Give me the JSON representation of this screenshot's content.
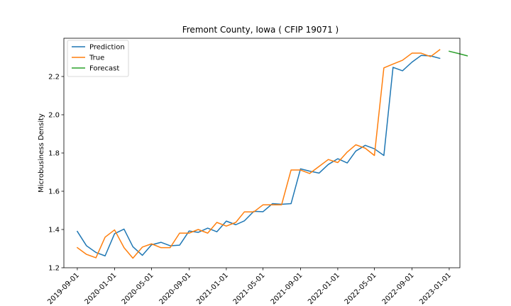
{
  "chart_data": {
    "type": "line",
    "title": "Fremont County, Iowa ( CFIP 19071 )",
    "xlabel": "",
    "ylabel": "Microbusiness Density",
    "xlim": [
      "2019-07-19",
      "2023-02-05"
    ],
    "ylim": [
      1.2,
      2.4
    ],
    "x_ticks": [
      "2019-09-01",
      "2020-01-01",
      "2020-05-01",
      "2020-09-01",
      "2021-01-01",
      "2021-05-01",
      "2021-09-01",
      "2022-01-01",
      "2022-05-01",
      "2022-09-01",
      "2023-01-01"
    ],
    "y_ticks": [
      1.2,
      1.4,
      1.6,
      1.8,
      2.0,
      2.2
    ],
    "y_tick_labels": [
      "1.2",
      "1.4",
      "1.6",
      "1.8",
      "2.0",
      "2.2"
    ],
    "grid": false,
    "legend_position": "top-left",
    "series": [
      {
        "name": "Prediction",
        "color": "#1f77b4",
        "points": [
          [
            "2019-09-01",
            1.39
          ],
          [
            "2019-10-01",
            1.315
          ],
          [
            "2019-11-01",
            1.28
          ],
          [
            "2019-12-01",
            1.262
          ],
          [
            "2020-01-01",
            1.378
          ],
          [
            "2020-02-01",
            1.402
          ],
          [
            "2020-03-01",
            1.31
          ],
          [
            "2020-04-01",
            1.265
          ],
          [
            "2020-05-01",
            1.32
          ],
          [
            "2020-06-01",
            1.333
          ],
          [
            "2020-07-01",
            1.315
          ],
          [
            "2020-08-01",
            1.318
          ],
          [
            "2020-09-01",
            1.392
          ],
          [
            "2020-10-01",
            1.385
          ],
          [
            "2020-11-01",
            1.407
          ],
          [
            "2020-12-01",
            1.388
          ],
          [
            "2021-01-01",
            1.444
          ],
          [
            "2021-02-01",
            1.425
          ],
          [
            "2021-03-01",
            1.445
          ],
          [
            "2021-04-01",
            1.495
          ],
          [
            "2021-05-01",
            1.493
          ],
          [
            "2021-06-01",
            1.535
          ],
          [
            "2021-07-01",
            1.532
          ],
          [
            "2021-08-01",
            1.535
          ],
          [
            "2021-09-01",
            1.717
          ],
          [
            "2021-10-01",
            1.705
          ],
          [
            "2021-11-01",
            1.695
          ],
          [
            "2021-12-01",
            1.74
          ],
          [
            "2022-01-01",
            1.77
          ],
          [
            "2022-02-01",
            1.748
          ],
          [
            "2022-03-01",
            1.81
          ],
          [
            "2022-04-01",
            1.84
          ],
          [
            "2022-05-01",
            1.822
          ],
          [
            "2022-06-01",
            1.787
          ],
          [
            "2022-07-01",
            2.248
          ],
          [
            "2022-08-01",
            2.23
          ],
          [
            "2022-09-01",
            2.275
          ],
          [
            "2022-10-01",
            2.31
          ],
          [
            "2022-11-01",
            2.308
          ],
          [
            "2022-12-01",
            2.295
          ]
        ]
      },
      {
        "name": "True",
        "color": "#ff7f0e",
        "points": [
          [
            "2019-09-01",
            1.305
          ],
          [
            "2019-10-01",
            1.27
          ],
          [
            "2019-11-01",
            1.252
          ],
          [
            "2019-12-01",
            1.36
          ],
          [
            "2020-01-01",
            1.398
          ],
          [
            "2020-02-01",
            1.305
          ],
          [
            "2020-03-01",
            1.25
          ],
          [
            "2020-04-01",
            1.308
          ],
          [
            "2020-05-01",
            1.325
          ],
          [
            "2020-06-01",
            1.305
          ],
          [
            "2020-07-01",
            1.305
          ],
          [
            "2020-08-01",
            1.381
          ],
          [
            "2020-09-01",
            1.381
          ],
          [
            "2020-10-01",
            1.4
          ],
          [
            "2020-11-01",
            1.381
          ],
          [
            "2020-12-01",
            1.437
          ],
          [
            "2021-01-01",
            1.418
          ],
          [
            "2021-02-01",
            1.437
          ],
          [
            "2021-03-01",
            1.492
          ],
          [
            "2021-04-01",
            1.492
          ],
          [
            "2021-05-01",
            1.529
          ],
          [
            "2021-06-01",
            1.529
          ],
          [
            "2021-07-01",
            1.529
          ],
          [
            "2021-08-01",
            1.711
          ],
          [
            "2021-09-01",
            1.711
          ],
          [
            "2021-10-01",
            1.693
          ],
          [
            "2021-11-01",
            1.73
          ],
          [
            "2021-12-01",
            1.766
          ],
          [
            "2022-01-01",
            1.75
          ],
          [
            "2022-02-01",
            1.805
          ],
          [
            "2022-03-01",
            1.843
          ],
          [
            "2022-04-01",
            1.825
          ],
          [
            "2022-05-01",
            1.787
          ],
          [
            "2022-06-01",
            2.245
          ],
          [
            "2022-07-01",
            2.265
          ],
          [
            "2022-08-01",
            2.285
          ],
          [
            "2022-09-01",
            2.322
          ],
          [
            "2022-10-01",
            2.322
          ],
          [
            "2022-11-01",
            2.304
          ],
          [
            "2022-12-01",
            2.34
          ]
        ]
      },
      {
        "name": "Forecast",
        "color": "#2ca02c",
        "points": [
          [
            "2023-01-01",
            2.332
          ],
          [
            "2023-02-01",
            2.32
          ],
          [
            "2023-03-01",
            2.308
          ]
        ]
      }
    ]
  }
}
